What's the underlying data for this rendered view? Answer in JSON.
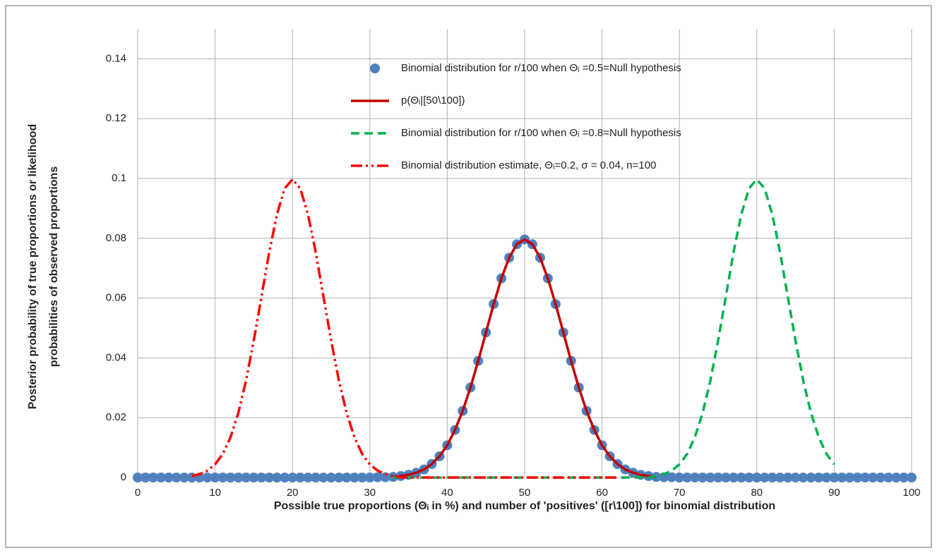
{
  "chart_data": {
    "type": "line",
    "xlabel": "Possible true proportions (Θᵢ in %) and number of 'positives' ([r\\100])  for binomial distribution",
    "ylabel": [
      "Posterior probability of true proportions or likelihood",
      "probabilities of observed proportions"
    ],
    "xlim": [
      0,
      100
    ],
    "xticks": [
      0,
      10,
      20,
      30,
      40,
      50,
      60,
      70,
      80,
      90,
      100
    ],
    "ylim": [
      0,
      0.15
    ],
    "yticks": [
      0,
      0.02,
      0.04,
      0.06,
      0.08,
      0.1,
      0.12,
      0.14
    ],
    "grid": true,
    "series": [
      {
        "name": "Binomial distribution for r/100 when Θᵢ =0.5=Null hypothesis",
        "color": "#4f81bd",
        "line_style": "dots",
        "x": [
          0,
          1,
          2,
          3,
          4,
          5,
          6,
          7,
          8,
          9,
          10,
          11,
          12,
          13,
          14,
          15,
          16,
          17,
          18,
          19,
          20,
          21,
          22,
          23,
          24,
          25,
          26,
          27,
          28,
          29,
          30,
          31,
          32,
          33,
          34,
          35,
          36,
          37,
          38,
          39,
          40,
          41,
          42,
          43,
          44,
          45,
          46,
          47,
          48,
          49,
          50,
          51,
          52,
          53,
          54,
          55,
          56,
          57,
          58,
          59,
          60,
          61,
          62,
          63,
          64,
          65,
          66,
          67,
          68,
          69,
          70,
          71,
          72,
          73,
          74,
          75,
          76,
          77,
          78,
          79,
          80,
          81,
          82,
          83,
          84,
          85,
          86,
          87,
          88,
          89,
          90,
          91,
          92,
          93,
          94,
          95,
          96,
          97,
          98,
          99,
          100
        ],
        "values": [
          0,
          0,
          0,
          0,
          0,
          0,
          0,
          0,
          0,
          0,
          0,
          0,
          0,
          0,
          0,
          0,
          0,
          0,
          0,
          0,
          0,
          0,
          0,
          0,
          0,
          0,
          0,
          0,
          0,
          0,
          0,
          0.0001,
          0.0001,
          0.0002,
          0.0005,
          0.0009,
          0.0016,
          0.0027,
          0.0045,
          0.0071,
          0.0108,
          0.0159,
          0.0223,
          0.0301,
          0.039,
          0.0485,
          0.058,
          0.0666,
          0.0735,
          0.078,
          0.0796,
          0.078,
          0.0735,
          0.0666,
          0.058,
          0.0485,
          0.039,
          0.0301,
          0.0223,
          0.0159,
          0.0108,
          0.0071,
          0.0045,
          0.0027,
          0.0016,
          0.0009,
          0.0005,
          0.0002,
          0.0001,
          0.0001,
          0,
          0,
          0,
          0,
          0,
          0,
          0,
          0,
          0,
          0,
          0,
          0,
          0,
          0,
          0,
          0,
          0,
          0,
          0,
          0,
          0,
          0,
          0,
          0,
          0,
          0,
          0,
          0,
          0,
          0,
          0
        ]
      },
      {
        "name": "p(Θᵢ|[50\\100])",
        "color": "#c00000",
        "line_style": "solid",
        "x": [
          33,
          34,
          35,
          36,
          37,
          38,
          39,
          40,
          41,
          42,
          43,
          44,
          45,
          46,
          47,
          48,
          49,
          50,
          51,
          52,
          53,
          54,
          55,
          56,
          57,
          58,
          59,
          60,
          61,
          62,
          63,
          64,
          65,
          66,
          67
        ],
        "values": [
          0.0002,
          0.0005,
          0.0009,
          0.0016,
          0.0027,
          0.0045,
          0.0071,
          0.0108,
          0.0159,
          0.0223,
          0.0301,
          0.039,
          0.0485,
          0.058,
          0.0666,
          0.0735,
          0.078,
          0.0796,
          0.078,
          0.0735,
          0.0666,
          0.058,
          0.0485,
          0.039,
          0.0301,
          0.0223,
          0.0159,
          0.0108,
          0.0071,
          0.0045,
          0.0027,
          0.0016,
          0.0009,
          0.0005,
          0.0002
        ]
      },
      {
        "name": "Binomial distribution for r/100 when Θᵢ =0.8=Null hypothesis",
        "color": "#00b050",
        "line_style": "dashed",
        "x": [
          33,
          34,
          35,
          36,
          37,
          38,
          39,
          40,
          41,
          42,
          43,
          44,
          45,
          46,
          47,
          48,
          49,
          50,
          51,
          52,
          53,
          54,
          55,
          56,
          57,
          58,
          59,
          60,
          61,
          62,
          63,
          64,
          65,
          66,
          67,
          68,
          69,
          70,
          71,
          72,
          73,
          74,
          75,
          76,
          77,
          78,
          79,
          80,
          81,
          82,
          83,
          84,
          85,
          86,
          87,
          88,
          89,
          90
        ],
        "values": [
          0,
          0,
          0,
          0,
          0,
          0,
          0,
          0,
          0,
          0,
          0,
          0,
          0,
          0,
          0,
          0,
          0,
          0,
          0,
          0,
          0,
          0,
          0,
          0,
          0,
          0,
          0,
          0,
          0,
          0,
          0,
          0,
          0,
          0,
          0.0005,
          0.0011,
          0.0023,
          0.0044,
          0.0079,
          0.0135,
          0.0216,
          0.0324,
          0.0458,
          0.0605,
          0.0754,
          0.088,
          0.0967,
          0.0997,
          0.0967,
          0.088,
          0.0754,
          0.0605,
          0.0458,
          0.0324,
          0.0216,
          0.0135,
          0.0079,
          0.0044
        ]
      },
      {
        "name": "Binomial distribution estimate, Θᵢ=0.2, σ = 0.04, n=100",
        "color": "#ff0000",
        "line_style": "dash-dot-dot",
        "x": [
          7,
          8,
          9,
          10,
          11,
          12,
          13,
          14,
          15,
          16,
          17,
          18,
          19,
          20,
          21,
          22,
          23,
          24,
          25,
          26,
          27,
          28,
          29,
          30,
          31,
          32,
          33,
          34,
          35,
          36,
          37,
          38,
          39,
          40,
          41,
          42,
          43,
          44,
          45,
          46,
          47,
          48,
          49,
          50,
          51,
          52,
          53,
          54,
          55,
          56,
          57,
          58,
          59,
          60,
          61,
          62
        ],
        "values": [
          0.0005,
          0.0011,
          0.0023,
          0.0044,
          0.0079,
          0.0135,
          0.0216,
          0.0324,
          0.0458,
          0.0605,
          0.0754,
          0.088,
          0.0967,
          0.0997,
          0.0967,
          0.088,
          0.0754,
          0.0605,
          0.0458,
          0.0324,
          0.0216,
          0.0135,
          0.0079,
          0.0044,
          0.0023,
          0.0011,
          0.0005,
          0,
          0,
          0,
          0,
          0,
          0,
          0,
          0,
          0,
          0,
          0,
          0,
          0,
          0,
          0,
          0,
          0,
          0,
          0,
          0,
          0,
          0,
          0,
          0,
          0,
          0,
          0,
          0,
          0
        ]
      }
    ]
  }
}
